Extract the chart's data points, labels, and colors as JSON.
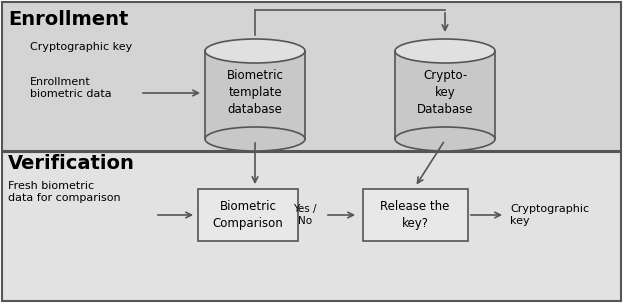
{
  "fig_width": 6.23,
  "fig_height": 3.03,
  "dpi": 100,
  "enrollment_bg": "#d4d4d4",
  "verification_bg": "#e2e2e2",
  "box_facecolor": "#e8e8e8",
  "box_edgecolor": "#555555",
  "cylinder_face": "#c8c8c8",
  "cylinder_top": "#e0e0e0",
  "cylinder_edge": "#555555",
  "arrow_color": "#555555",
  "border_color": "#555555",
  "enrollment_title": "Enrollment",
  "verification_title": "Verification",
  "crypto_key_label": "Cryptographic key",
  "enrollment_bio_label": "Enrollment\nbiometric data",
  "bio_db_label": "Biometric\ntemplate\ndatabase",
  "crypto_db_label": "Crypto-\nkey\nDatabase",
  "fresh_bio_label": "Fresh biometric\ndata for comparison",
  "bio_comp_label": "Biometric\nComparison",
  "yes_no_label": "Yes /\nNo",
  "release_label": "Release the\nkey?",
  "crypto_key_out_label": "Cryptographic\nkey"
}
